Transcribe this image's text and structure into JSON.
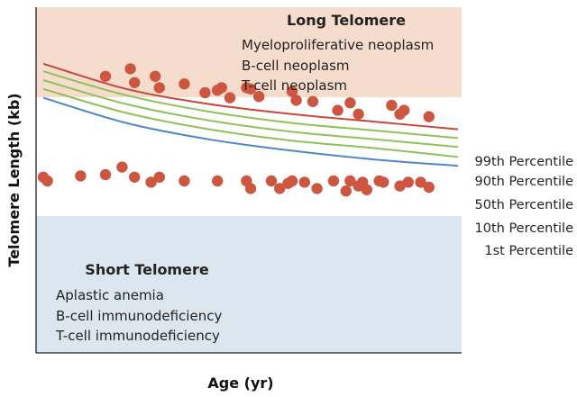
{
  "chart_data": {
    "type": "line",
    "xlabel": "Age (yr)",
    "ylabel": "Telomere Length (kb)",
    "regions": [
      {
        "title": "Long Telomere",
        "color": "#f6dccd",
        "items": [
          "Myeloproliferative neoplasm",
          "B-cell neoplasm",
          "T-cell neoplasm"
        ]
      },
      {
        "title": "Short Telomere",
        "color": "#dce6ee",
        "items": [
          "Aplastic anemia",
          "B-cell immunodeficiency",
          "T-cell immunodeficiency"
        ]
      }
    ],
    "series": [
      {
        "name": "99th Percentile",
        "color": "#c8473a",
        "y": [
          78,
          58,
          46,
          38,
          32,
          26
        ]
      },
      {
        "name": "90th Percentile",
        "color": "#8ec15a",
        "y": [
          72,
          53,
          40,
          31,
          25,
          19
        ]
      },
      {
        "name": "50th Percentile",
        "color": "#8ec15a",
        "y": [
          65,
          46,
          33,
          24,
          18,
          12
        ]
      },
      {
        "name": "10th Percentile",
        "color": "#8ec15a",
        "y": [
          58,
          39,
          26,
          17,
          11,
          4
        ]
      },
      {
        "name": "1st Percentile",
        "color": "#4f86c6",
        "y": [
          51,
          31,
          18,
          9,
          2,
          -3
        ]
      }
    ],
    "x": [
      0,
      0.2,
      0.4,
      0.6,
      0.8,
      1.0
    ],
    "points_long": [
      [
        0.15,
        68
      ],
      [
        0.21,
        74
      ],
      [
        0.22,
        63
      ],
      [
        0.27,
        68
      ],
      [
        0.28,
        59
      ],
      [
        0.34,
        62
      ],
      [
        0.39,
        55
      ],
      [
        0.42,
        57
      ],
      [
        0.43,
        59
      ],
      [
        0.45,
        51
      ],
      [
        0.49,
        59
      ],
      [
        0.5,
        58
      ],
      [
        0.52,
        52
      ],
      [
        0.6,
        56
      ],
      [
        0.61,
        49
      ],
      [
        0.65,
        48
      ],
      [
        0.71,
        41
      ],
      [
        0.74,
        47
      ],
      [
        0.76,
        38
      ],
      [
        0.84,
        45
      ],
      [
        0.86,
        38
      ],
      [
        0.87,
        41
      ],
      [
        0.93,
        36
      ]
    ],
    "points_short": [
      [
        0.0,
        -12
      ],
      [
        0.01,
        -15
      ],
      [
        0.09,
        -11
      ],
      [
        0.15,
        -10
      ],
      [
        0.19,
        -4
      ],
      [
        0.22,
        -12
      ],
      [
        0.26,
        -16
      ],
      [
        0.28,
        -12
      ],
      [
        0.34,
        -15
      ],
      [
        0.42,
        -15
      ],
      [
        0.49,
        -15
      ],
      [
        0.5,
        -21
      ],
      [
        0.55,
        -15
      ],
      [
        0.57,
        -21
      ],
      [
        0.59,
        -17
      ],
      [
        0.6,
        -15
      ],
      [
        0.63,
        -16
      ],
      [
        0.66,
        -21
      ],
      [
        0.7,
        -15
      ],
      [
        0.73,
        -23
      ],
      [
        0.74,
        -15
      ],
      [
        0.76,
        -19
      ],
      [
        0.77,
        -16
      ],
      [
        0.78,
        -22
      ],
      [
        0.81,
        -15
      ],
      [
        0.82,
        -16
      ],
      [
        0.86,
        -19
      ],
      [
        0.88,
        -16
      ],
      [
        0.91,
        -16
      ],
      [
        0.93,
        -20
      ]
    ],
    "point_color": "#cc5640"
  }
}
